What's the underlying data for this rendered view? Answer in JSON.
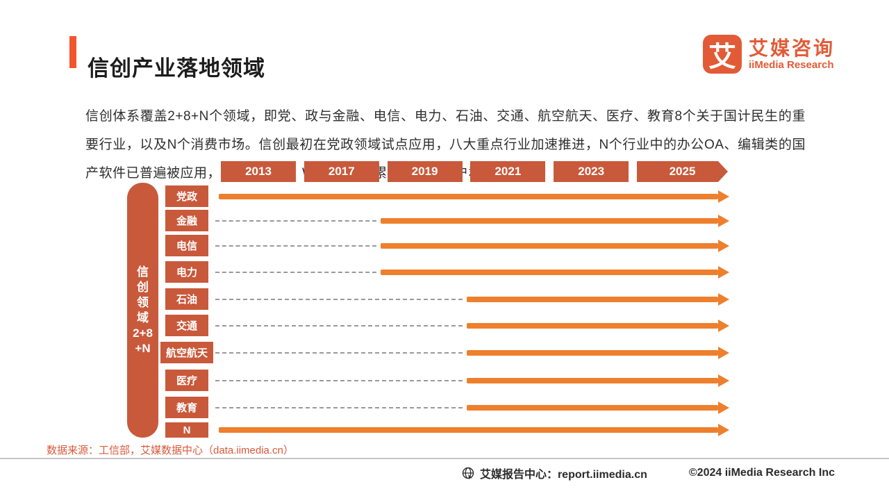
{
  "page": {
    "title": "信创产业落地领域",
    "logo": {
      "mark": "艾",
      "name_cn": "艾媒咨询",
      "name_en": "iiMedia Research"
    },
    "intro": "信创体系覆盖2+8+N个领域，即党、政与金融、电信、电力、石油、交通、航空航天、医疗、教育8个关于国计民生的重要行业，以及N个消费市场。信创最初在党政领域试点应用，八大重点行业加速推进，N个行业中的办公OA、编辑类的国产软件已普遍被应用，如企业微信、WPS等已积累了大量的用户群体。",
    "source": "数据来源：工信部，艾媒数据中心（data.iimedia.cn）",
    "footer": {
      "report_center": "艾媒报告中心：report.iimedia.cn",
      "copyright": "©2024  iiMedia Research Inc"
    }
  },
  "chart_data": {
    "type": "bar",
    "subtype": "timeline_arrows_gantt",
    "title": "信创产业落地领域",
    "x_tick_labels": [
      "2013",
      "2017",
      "2019",
      "2021",
      "2023",
      "2025"
    ],
    "xlim": [
      2013,
      2025
    ],
    "x_open_ended": true,
    "y_axis_label": "信创领域2+8+N",
    "y_axis_label_segments": [
      "信",
      "创",
      "领",
      "域",
      "2+8",
      "+N"
    ],
    "rows": [
      {
        "label": "党政",
        "start_year": 2013,
        "style": "solid_from_start"
      },
      {
        "label": "金融",
        "start_year": 2019,
        "style": "dashed_then_solid"
      },
      {
        "label": "电信",
        "start_year": 2019,
        "style": "dashed_then_solid"
      },
      {
        "label": "电力",
        "start_year": 2019,
        "style": "dashed_then_solid"
      },
      {
        "label": "石油",
        "start_year": 2021,
        "style": "dashed_then_solid"
      },
      {
        "label": "交通",
        "start_year": 2021,
        "style": "dashed_then_solid"
      },
      {
        "label": "航空航天",
        "start_year": 2021,
        "style": "dashed_then_solid"
      },
      {
        "label": "医疗",
        "start_year": 2021,
        "style": "dashed_then_solid"
      },
      {
        "label": "教育",
        "start_year": 2021,
        "style": "dashed_then_solid"
      },
      {
        "label": "N",
        "start_year": 2013,
        "style": "solid_from_start"
      }
    ],
    "legend": "none",
    "grid": "off",
    "colors": {
      "label_box": "#c9593b",
      "arrow": "#ee7f2d",
      "dashed_line": "#999999",
      "title_accent": "#f2552c",
      "logo_orange": "#e25b36",
      "source_text": "#d9593a",
      "body_text": "#2e2e2e"
    }
  }
}
